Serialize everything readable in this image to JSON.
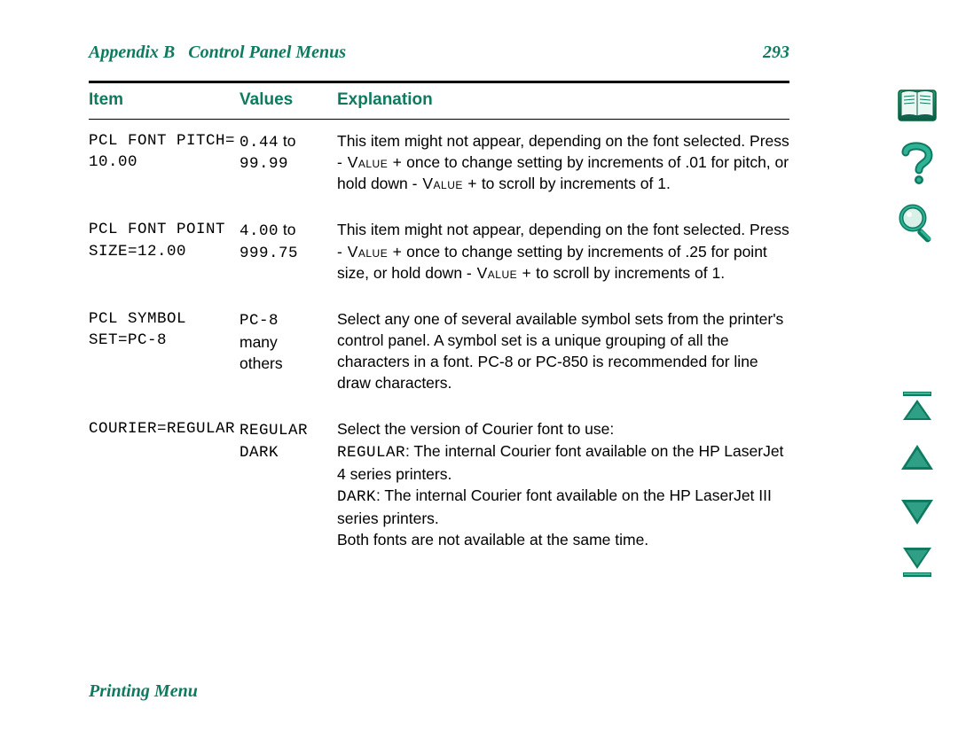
{
  "colors": {
    "accent": "#0e7a5f",
    "accent_dark": "#0a5a46",
    "accent_light": "#2fa085",
    "text": "#000000",
    "background": "#ffffff",
    "rule": "#000000"
  },
  "header": {
    "appendix": "Appendix B",
    "title": "Control Panel Menus",
    "page_number": "293"
  },
  "columns": {
    "item": "Item",
    "values": "Values",
    "explanation": "Explanation"
  },
  "rows": [
    {
      "item_line1": "PCL FONT PITCH=",
      "item_line2": "10.00",
      "values_line1_a": "0.44",
      "values_line1_b": " to",
      "values_line2": "99.99",
      "explanation_parts": [
        {
          "t": "This item might not appear, depending on the font selected. Press "
        },
        {
          "t": "- Value +",
          "style": "smallcaps"
        },
        {
          "t": " once to change setting by increments of .01 for pitch, or hold down "
        },
        {
          "t": "- Value +",
          "style": "smallcaps"
        },
        {
          "t": " to scroll by increments of 1."
        }
      ]
    },
    {
      "item_line1": "PCL FONT POINT",
      "item_line2": "SIZE=12.00",
      "values_line1_a": "4.00",
      "values_line1_b": " to",
      "values_line2": "999.75",
      "explanation_parts": [
        {
          "t": "This item might not appear, depending on the font selected. Press "
        },
        {
          "t": "- Value +",
          "style": "smallcaps"
        },
        {
          "t": " once to change setting by increments of .25 for point size, or hold down "
        },
        {
          "t": "- Value +",
          "style": "smallcaps"
        },
        {
          "t": " to scroll by increments of 1."
        }
      ]
    },
    {
      "item_line1": "PCL SYMBOL",
      "item_line2": "SET=PC-8",
      "values_line1_a": "PC-8",
      "values_line1_b": "",
      "values_line2_plain": "many",
      "values_line3_plain": "others",
      "explanation_parts": [
        {
          "t": "Select any one of several available symbol sets from the printer's control panel. A symbol set is a unique grouping of all the characters in a font. PC-8 or PC-850 is recommended for line draw characters."
        }
      ]
    },
    {
      "item_line1": "COURIER=REGULAR",
      "item_line2": "",
      "values_line1_a": "REGULAR",
      "values_line1_b": "",
      "values_line2": "DARK",
      "explanation_parts": [
        {
          "t": "Select the version of Courier font to use:"
        },
        {
          "br": true
        },
        {
          "t": "REGULAR",
          "style": "mono"
        },
        {
          "t": ": The internal Courier font available on the HP LaserJet 4 series printers."
        },
        {
          "br": true
        },
        {
          "t": "DARK",
          "style": "mono"
        },
        {
          "t": ": The internal Courier font available on the HP LaserJet III series printers."
        },
        {
          "br": true
        },
        {
          "t": "Both fonts are not available at the same time."
        }
      ]
    }
  ],
  "footer": "Printing Menu",
  "sidebar_icons": {
    "book": "book-icon",
    "help": "help-icon",
    "search": "search-icon"
  },
  "nav_icons": {
    "first": "goto-first-icon",
    "prev": "prev-page-icon",
    "next": "next-page-icon",
    "last": "goto-last-icon"
  }
}
